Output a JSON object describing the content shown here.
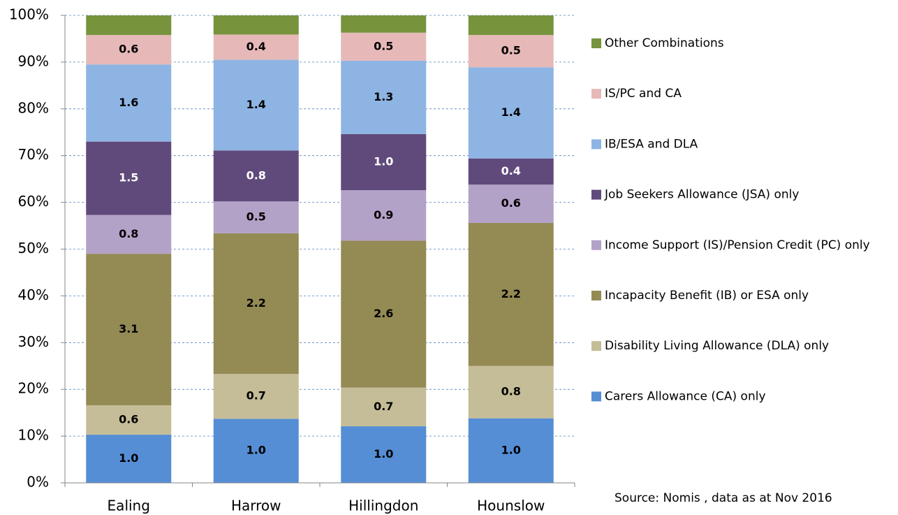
{
  "chart_data": {
    "type": "stacked_bar",
    "categories": [
      "Ealing",
      "Harrow",
      "Hillingdon",
      "Hounslow"
    ],
    "series": [
      {
        "name": "Carers Allowance (CA) only",
        "color": "#558ed5",
        "values": [
          10.3,
          13.7,
          12.1,
          13.8
        ],
        "data_labels": [
          "1.0",
          "1.0",
          "1.0",
          "1.0"
        ]
      },
      {
        "name": "Disability Living Allowance (DLA) only",
        "color": "#c4bd97",
        "values": [
          6.3,
          9.6,
          8.3,
          11.2
        ],
        "data_labels": [
          "0.6",
          "0.7",
          "0.7",
          "0.8"
        ]
      },
      {
        "name": "Incapacity Benefit (IB) or ESA only",
        "color": "#948a54",
        "values": [
          32.4,
          30.1,
          31.4,
          30.6
        ],
        "data_labels": [
          "3.1",
          "2.2",
          "2.6",
          "2.2"
        ]
      },
      {
        "name": "Income Support (IS)/Pension Credit (PC) only",
        "color": "#b3a2c7",
        "values": [
          8.3,
          6.8,
          10.8,
          8.2
        ],
        "data_labels": [
          "0.8",
          "0.5",
          "0.9",
          "0.6"
        ]
      },
      {
        "name": "Job Seekers Allowance (JSA) only",
        "color": "#604a7b",
        "values": [
          15.7,
          10.9,
          12.0,
          5.6
        ],
        "data_labels": [
          "1.5",
          "0.8",
          "1.0",
          "0.4"
        ]
      },
      {
        "name": "IB/ESA and DLA",
        "color": "#8eb4e3",
        "values": [
          16.5,
          19.4,
          15.7,
          19.5
        ],
        "data_labels": [
          "1.6",
          "1.4",
          "1.3",
          "1.4"
        ]
      },
      {
        "name": "IS/PC and CA",
        "color": "#e6b9b8",
        "values": [
          6.3,
          5.4,
          6.0,
          6.9
        ],
        "data_labels": [
          "0.6",
          "0.4",
          "0.5",
          "0.5"
        ]
      },
      {
        "name": "Other Combinations",
        "color": "#77933c",
        "values": [
          4.2,
          4.1,
          3.7,
          4.2
        ]
      }
    ],
    "ylim": [
      0,
      100
    ],
    "yticks": [
      {
        "value": 0,
        "label": "0%"
      },
      {
        "value": 10,
        "label": "10%"
      },
      {
        "value": 20,
        "label": "20%"
      },
      {
        "value": 30,
        "label": "30%"
      },
      {
        "value": 40,
        "label": "40%"
      },
      {
        "value": 50,
        "label": "50%"
      },
      {
        "value": 60,
        "label": "60%"
      },
      {
        "value": 70,
        "label": "70%"
      },
      {
        "value": 80,
        "label": "80%"
      },
      {
        "value": 90,
        "label": "90%"
      },
      {
        "value": 100,
        "label": "100%"
      }
    ],
    "grid": true,
    "legend": "right",
    "source": "Source: Nomis , data as at Nov 2016"
  }
}
